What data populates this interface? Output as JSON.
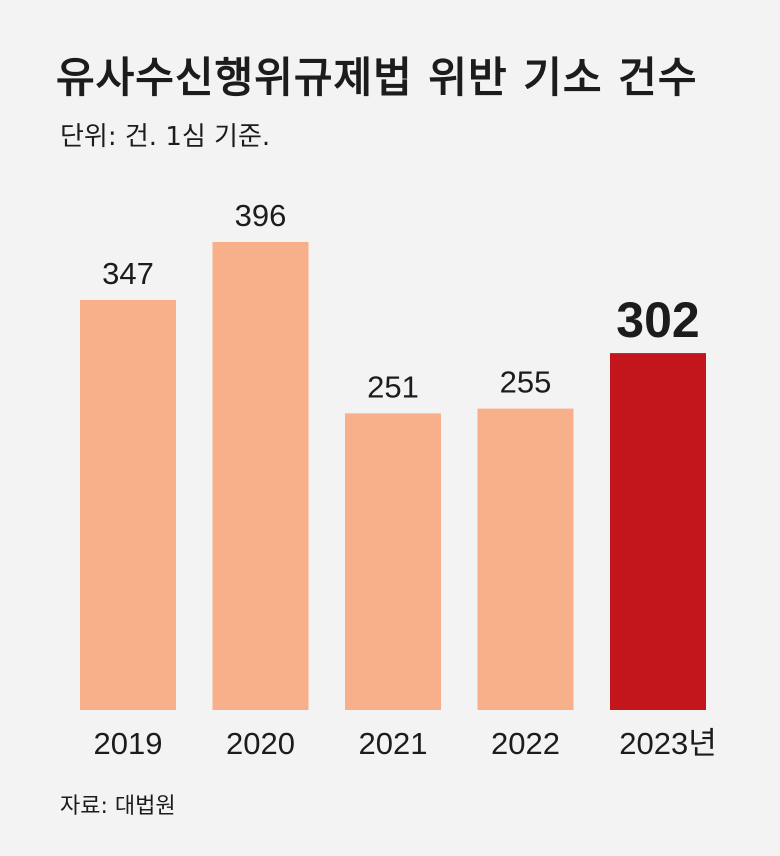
{
  "title": "유사수신행위규제법 위반 기소 건수",
  "subtitle": "단위: 건. 1심 기준.",
  "source": "자료: 대법원",
  "colors": {
    "bar": "#f8b08a",
    "highlight": "#c3161c",
    "background": "#f3f3f3"
  },
  "chart_data": {
    "type": "bar",
    "title": "유사수신행위규제법 위반 기소 건수",
    "subtitle": "단위: 건. 1심 기준.",
    "categories": [
      "2019",
      "2020",
      "2021",
      "2022",
      "2023년"
    ],
    "values": [
      347,
      396,
      251,
      255,
      302
    ],
    "highlight_index": 4,
    "xlabel": "",
    "ylabel": "",
    "ylim": [
      0,
      396
    ],
    "grid": false,
    "legend": "none"
  }
}
